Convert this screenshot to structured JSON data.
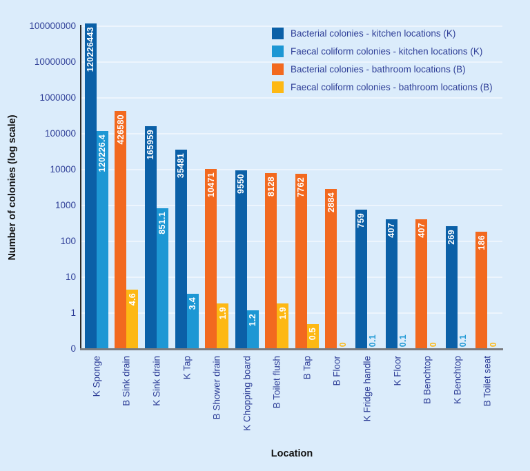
{
  "chart_data": {
    "type": "bar",
    "title": "",
    "xlabel": "Location",
    "ylabel": "Number of colonies (log scale)",
    "yscale": "log",
    "ylim": [
      0.1,
      200000000
    ],
    "grid": true,
    "legend_position": "top-right",
    "yticks": [
      "100000000",
      "10000000",
      "1000000",
      "100000",
      "10000",
      "1000",
      "100",
      "10",
      "1",
      "0"
    ],
    "legend": [
      {
        "label": "Bacterial colonies - kitchen locations (K)",
        "series": "kitchen_bacterial"
      },
      {
        "label": "Faecal coliform colonies - kitchen locations (K)",
        "series": "kitchen_faecal"
      },
      {
        "label": "Bacterial colonies - bathroom locations (B)",
        "series": "bathroom_bacterial"
      },
      {
        "label": "Faecal coliform colonies - bathroom locations (B)",
        "series": "bathroom_faecal"
      }
    ],
    "colors": {
      "kitchen_bacterial": "#0b60a7",
      "kitchen_faecal": "#1d97d4",
      "bathroom_bacterial": "#f2691f",
      "bathroom_faecal": "#fdb814",
      "background": "#dbecfb",
      "gridline": "#edf5fd",
      "tick_text": "#2e3e97",
      "axis_title_text": "#111111",
      "value_label_inside": "#ffffff"
    },
    "groups": [
      {
        "label": "K Sponge",
        "location": "kitchen",
        "bacterial": "120226443",
        "faecal": "120226.4"
      },
      {
        "label": "B Sink drain",
        "location": "bathroom",
        "bacterial": "426580",
        "faecal": "4.6"
      },
      {
        "label": "K Sink drain",
        "location": "kitchen",
        "bacterial": "165959",
        "faecal": "851.1"
      },
      {
        "label": "K Tap",
        "location": "kitchen",
        "bacterial": "35481",
        "faecal": "3.4"
      },
      {
        "label": "B Shower drain",
        "location": "bathroom",
        "bacterial": "10471",
        "faecal": "1.9"
      },
      {
        "label": "K Chopping board",
        "location": "kitchen",
        "bacterial": "9550",
        "faecal": "1.2"
      },
      {
        "label": "B Toilet flush",
        "location": "bathroom",
        "bacterial": "8128",
        "faecal": "1.9"
      },
      {
        "label": "B Tap",
        "location": "bathroom",
        "bacterial": "7762",
        "faecal": "0.5"
      },
      {
        "label": "B Floor",
        "location": "bathroom",
        "bacterial": "2884",
        "faecal": "0"
      },
      {
        "label": "K Fridge handle",
        "location": "kitchen",
        "bacterial": "759",
        "faecal": "0.1"
      },
      {
        "label": "K Floor",
        "location": "kitchen",
        "bacterial": "407",
        "faecal": "0.1"
      },
      {
        "label": "B Benchtop",
        "location": "bathroom",
        "bacterial": "407",
        "faecal": "0"
      },
      {
        "label": "K Benchtop",
        "location": "kitchen",
        "bacterial": "269",
        "faecal": "0.1"
      },
      {
        "label": "B Toilet seat",
        "location": "bathroom",
        "bacterial": "186",
        "faecal": "0"
      }
    ]
  }
}
